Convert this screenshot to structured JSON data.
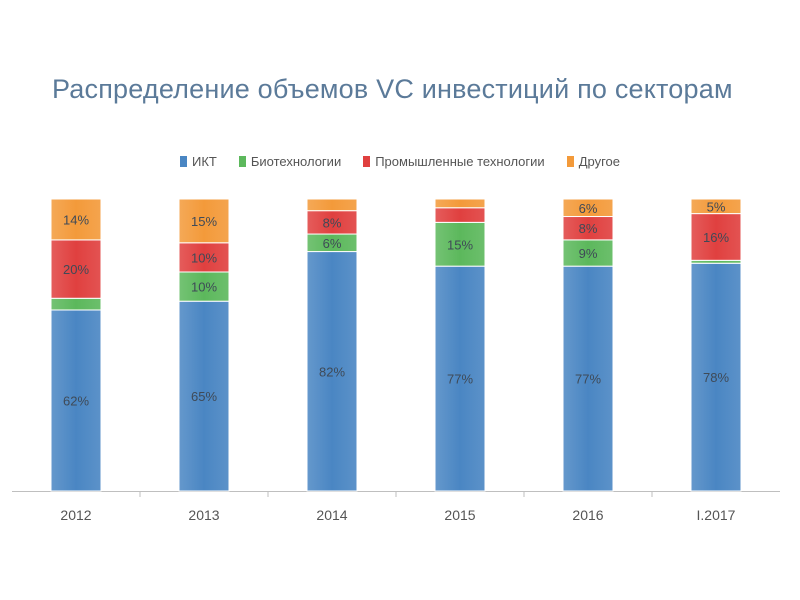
{
  "chart_data": {
    "type": "bar",
    "stacked": true,
    "title": "Распределение объемов VC инвестиций по секторам",
    "categories": [
      "2012",
      "2013",
      "2014",
      "2015",
      "2016",
      "I.2017"
    ],
    "series": [
      {
        "name": "ИКТ",
        "color": "#4a86c3",
        "values": [
          62,
          65,
          82,
          77,
          77,
          78
        ],
        "labels": [
          "62%",
          "65%",
          "82%",
          "77%",
          "77%",
          "78%"
        ]
      },
      {
        "name": "Биотехнологии",
        "color": "#5cb85c",
        "values": [
          4,
          10,
          6,
          15,
          9,
          1
        ],
        "labels": [
          "",
          "10%",
          "6%",
          "15%",
          "9%",
          ""
        ]
      },
      {
        "name": "Промышленные технологии",
        "color": "#e0403f",
        "values": [
          20,
          10,
          8,
          5,
          8,
          16
        ],
        "labels": [
          "20%",
          "10%",
          "8%",
          "",
          "8%",
          "16%"
        ]
      },
      {
        "name": "Другое",
        "color": "#f39a3a",
        "values": [
          14,
          15,
          4,
          3,
          6,
          5
        ],
        "labels": [
          "14%",
          "15%",
          "",
          "",
          "6%",
          "5%"
        ]
      }
    ],
    "ylim": [
      0,
      100
    ],
    "legend_position": "top-center",
    "grid": false
  }
}
